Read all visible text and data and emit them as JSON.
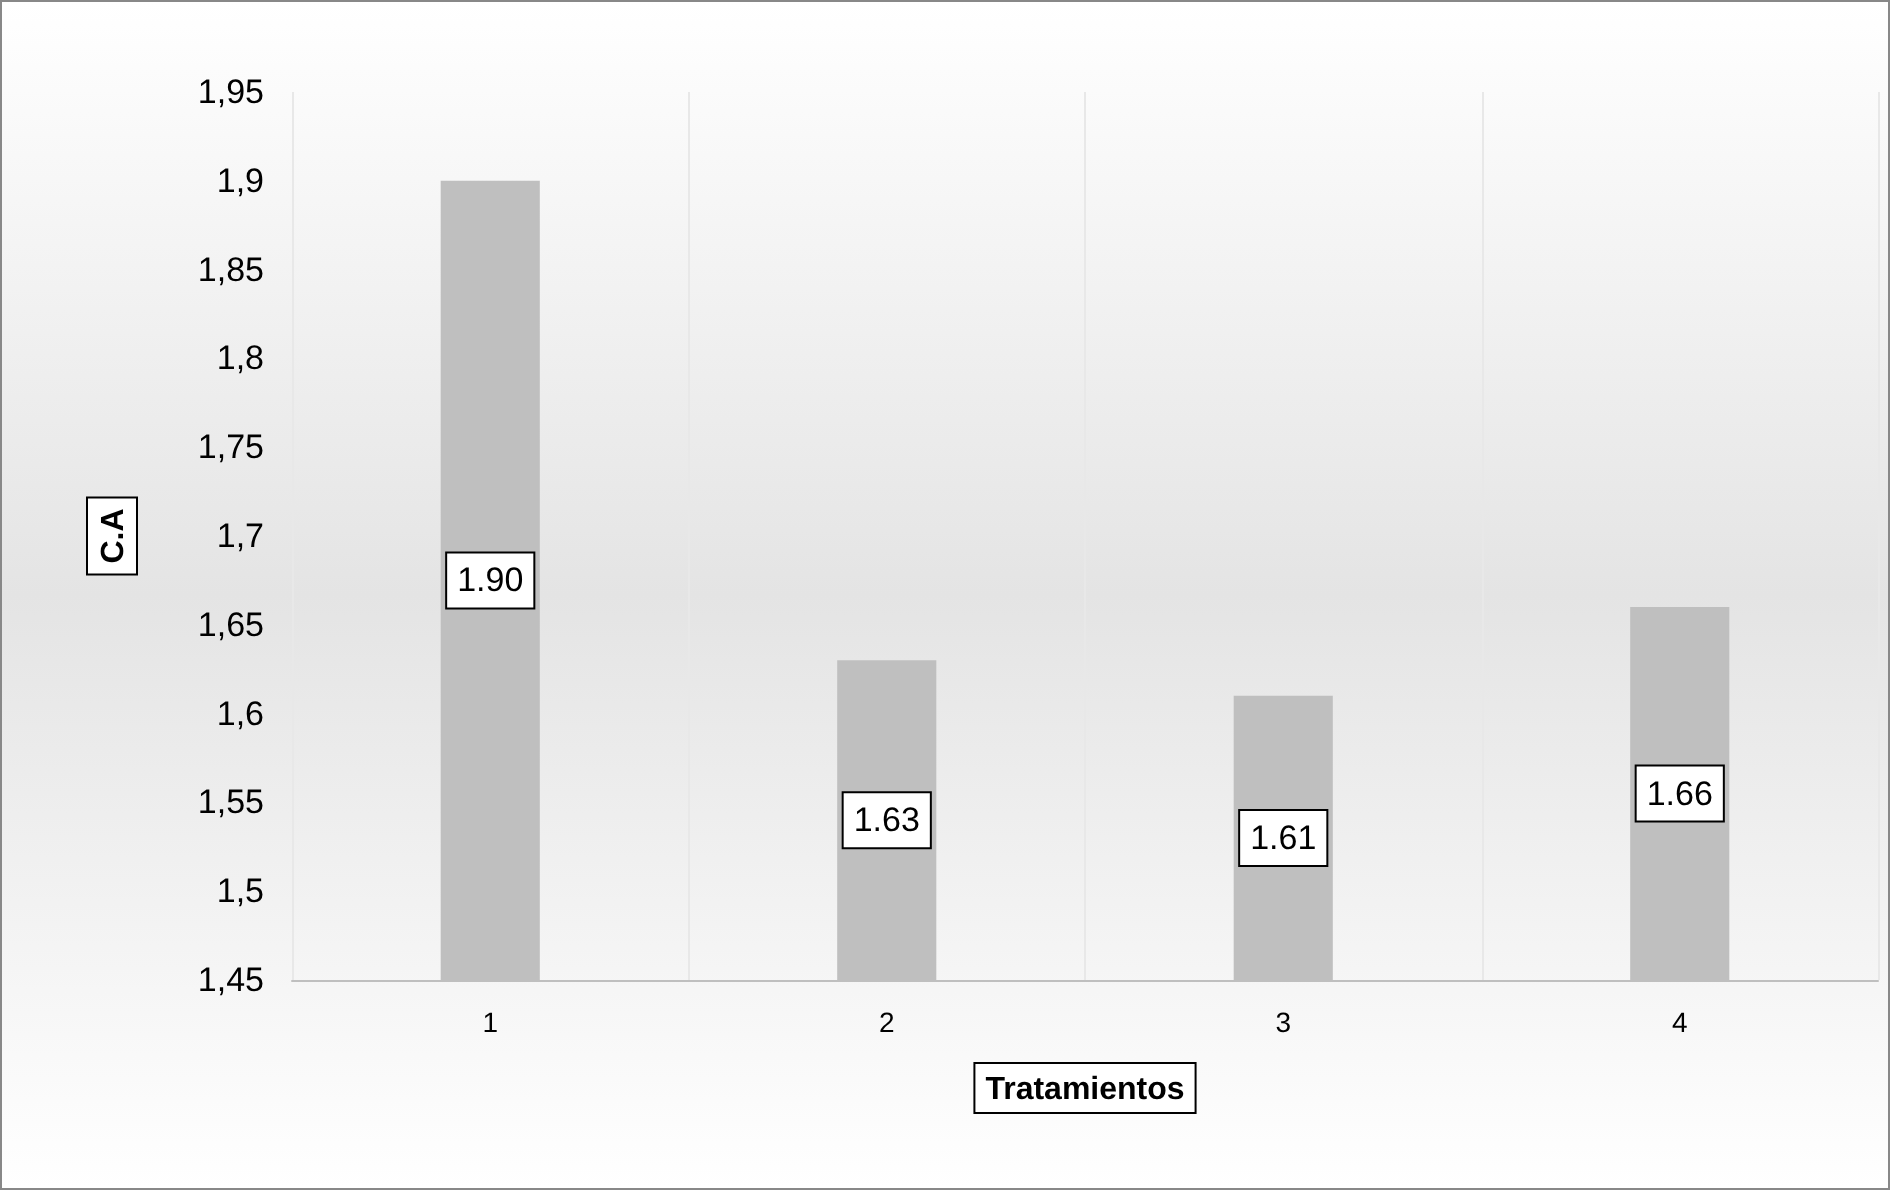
{
  "chart_data": {
    "type": "bar",
    "xlabel": "Tratamientos",
    "ylabel": "C.A",
    "categories": [
      "1",
      "2",
      "3",
      "4"
    ],
    "values": [
      1.9,
      1.63,
      1.61,
      1.66
    ],
    "color": "#bfbfbf",
    "value_labels": [
      "1.90",
      "1.63",
      "1.61",
      "1.66"
    ],
    "ylim": [
      1.45,
      1.95
    ],
    "yticks": [
      {
        "value": 1.45,
        "label": "1,45"
      },
      {
        "value": 1.5,
        "label": "1,5"
      },
      {
        "value": 1.55,
        "label": "1,55"
      },
      {
        "value": 1.6,
        "label": "1,6"
      },
      {
        "value": 1.65,
        "label": "1,65"
      },
      {
        "value": 1.7,
        "label": "1,7"
      },
      {
        "value": 1.75,
        "label": "1,75"
      },
      {
        "value": 1.8,
        "label": "1,8"
      },
      {
        "value": 1.85,
        "label": "1,85"
      },
      {
        "value": 1.9,
        "label": "1,9"
      },
      {
        "value": 1.95,
        "label": "1,95"
      }
    ],
    "grid": "x"
  }
}
